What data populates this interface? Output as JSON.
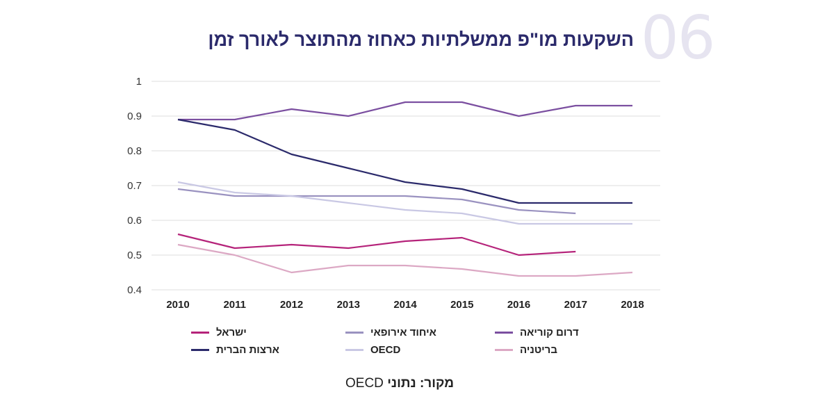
{
  "chart_data": {
    "type": "line",
    "number": "06",
    "title": "השקעות מו\"פ ממשלתיות כאחוז מהתוצר לאורך זמן",
    "x": [
      "2010",
      "2011",
      "2012",
      "2013",
      "2014",
      "2015",
      "2016",
      "2017",
      "2018"
    ],
    "yticks": [
      "1",
      "0.9",
      "0.8",
      "0.7",
      "0.6",
      "0.5",
      "0.4"
    ],
    "ylim": [
      0.4,
      1
    ],
    "grid": true,
    "legend_position": "bottom",
    "series": [
      {
        "name": "ישראל",
        "color": "#b5237a",
        "values": [
          0.56,
          0.52,
          0.53,
          0.52,
          0.54,
          0.55,
          0.5,
          0.51,
          null
        ]
      },
      {
        "name": "איחוד אירופאי",
        "color": "#9a92c0",
        "values": [
          0.69,
          0.67,
          0.67,
          0.67,
          0.67,
          0.66,
          0.63,
          0.62,
          null
        ]
      },
      {
        "name": "דרום קוריאה",
        "color": "#7b4fa0",
        "values": [
          0.89,
          0.89,
          0.92,
          0.9,
          0.94,
          0.94,
          0.9,
          0.93,
          0.93
        ]
      },
      {
        "name": "ארצות הברית",
        "color": "#2b2a6b",
        "values": [
          0.89,
          0.86,
          0.79,
          0.75,
          0.71,
          0.69,
          0.65,
          0.65,
          0.65
        ]
      },
      {
        "name": "OECD",
        "color": "#c9c8e4",
        "values": [
          0.71,
          0.68,
          0.67,
          0.65,
          0.63,
          0.62,
          0.59,
          0.59,
          0.59
        ]
      },
      {
        "name": "בריטניה",
        "color": "#dca8c4",
        "values": [
          0.53,
          0.5,
          0.45,
          0.47,
          0.47,
          0.46,
          0.44,
          0.44,
          0.45
        ]
      }
    ],
    "source_label": "מקור: נתוני",
    "source_name": "OECD"
  }
}
